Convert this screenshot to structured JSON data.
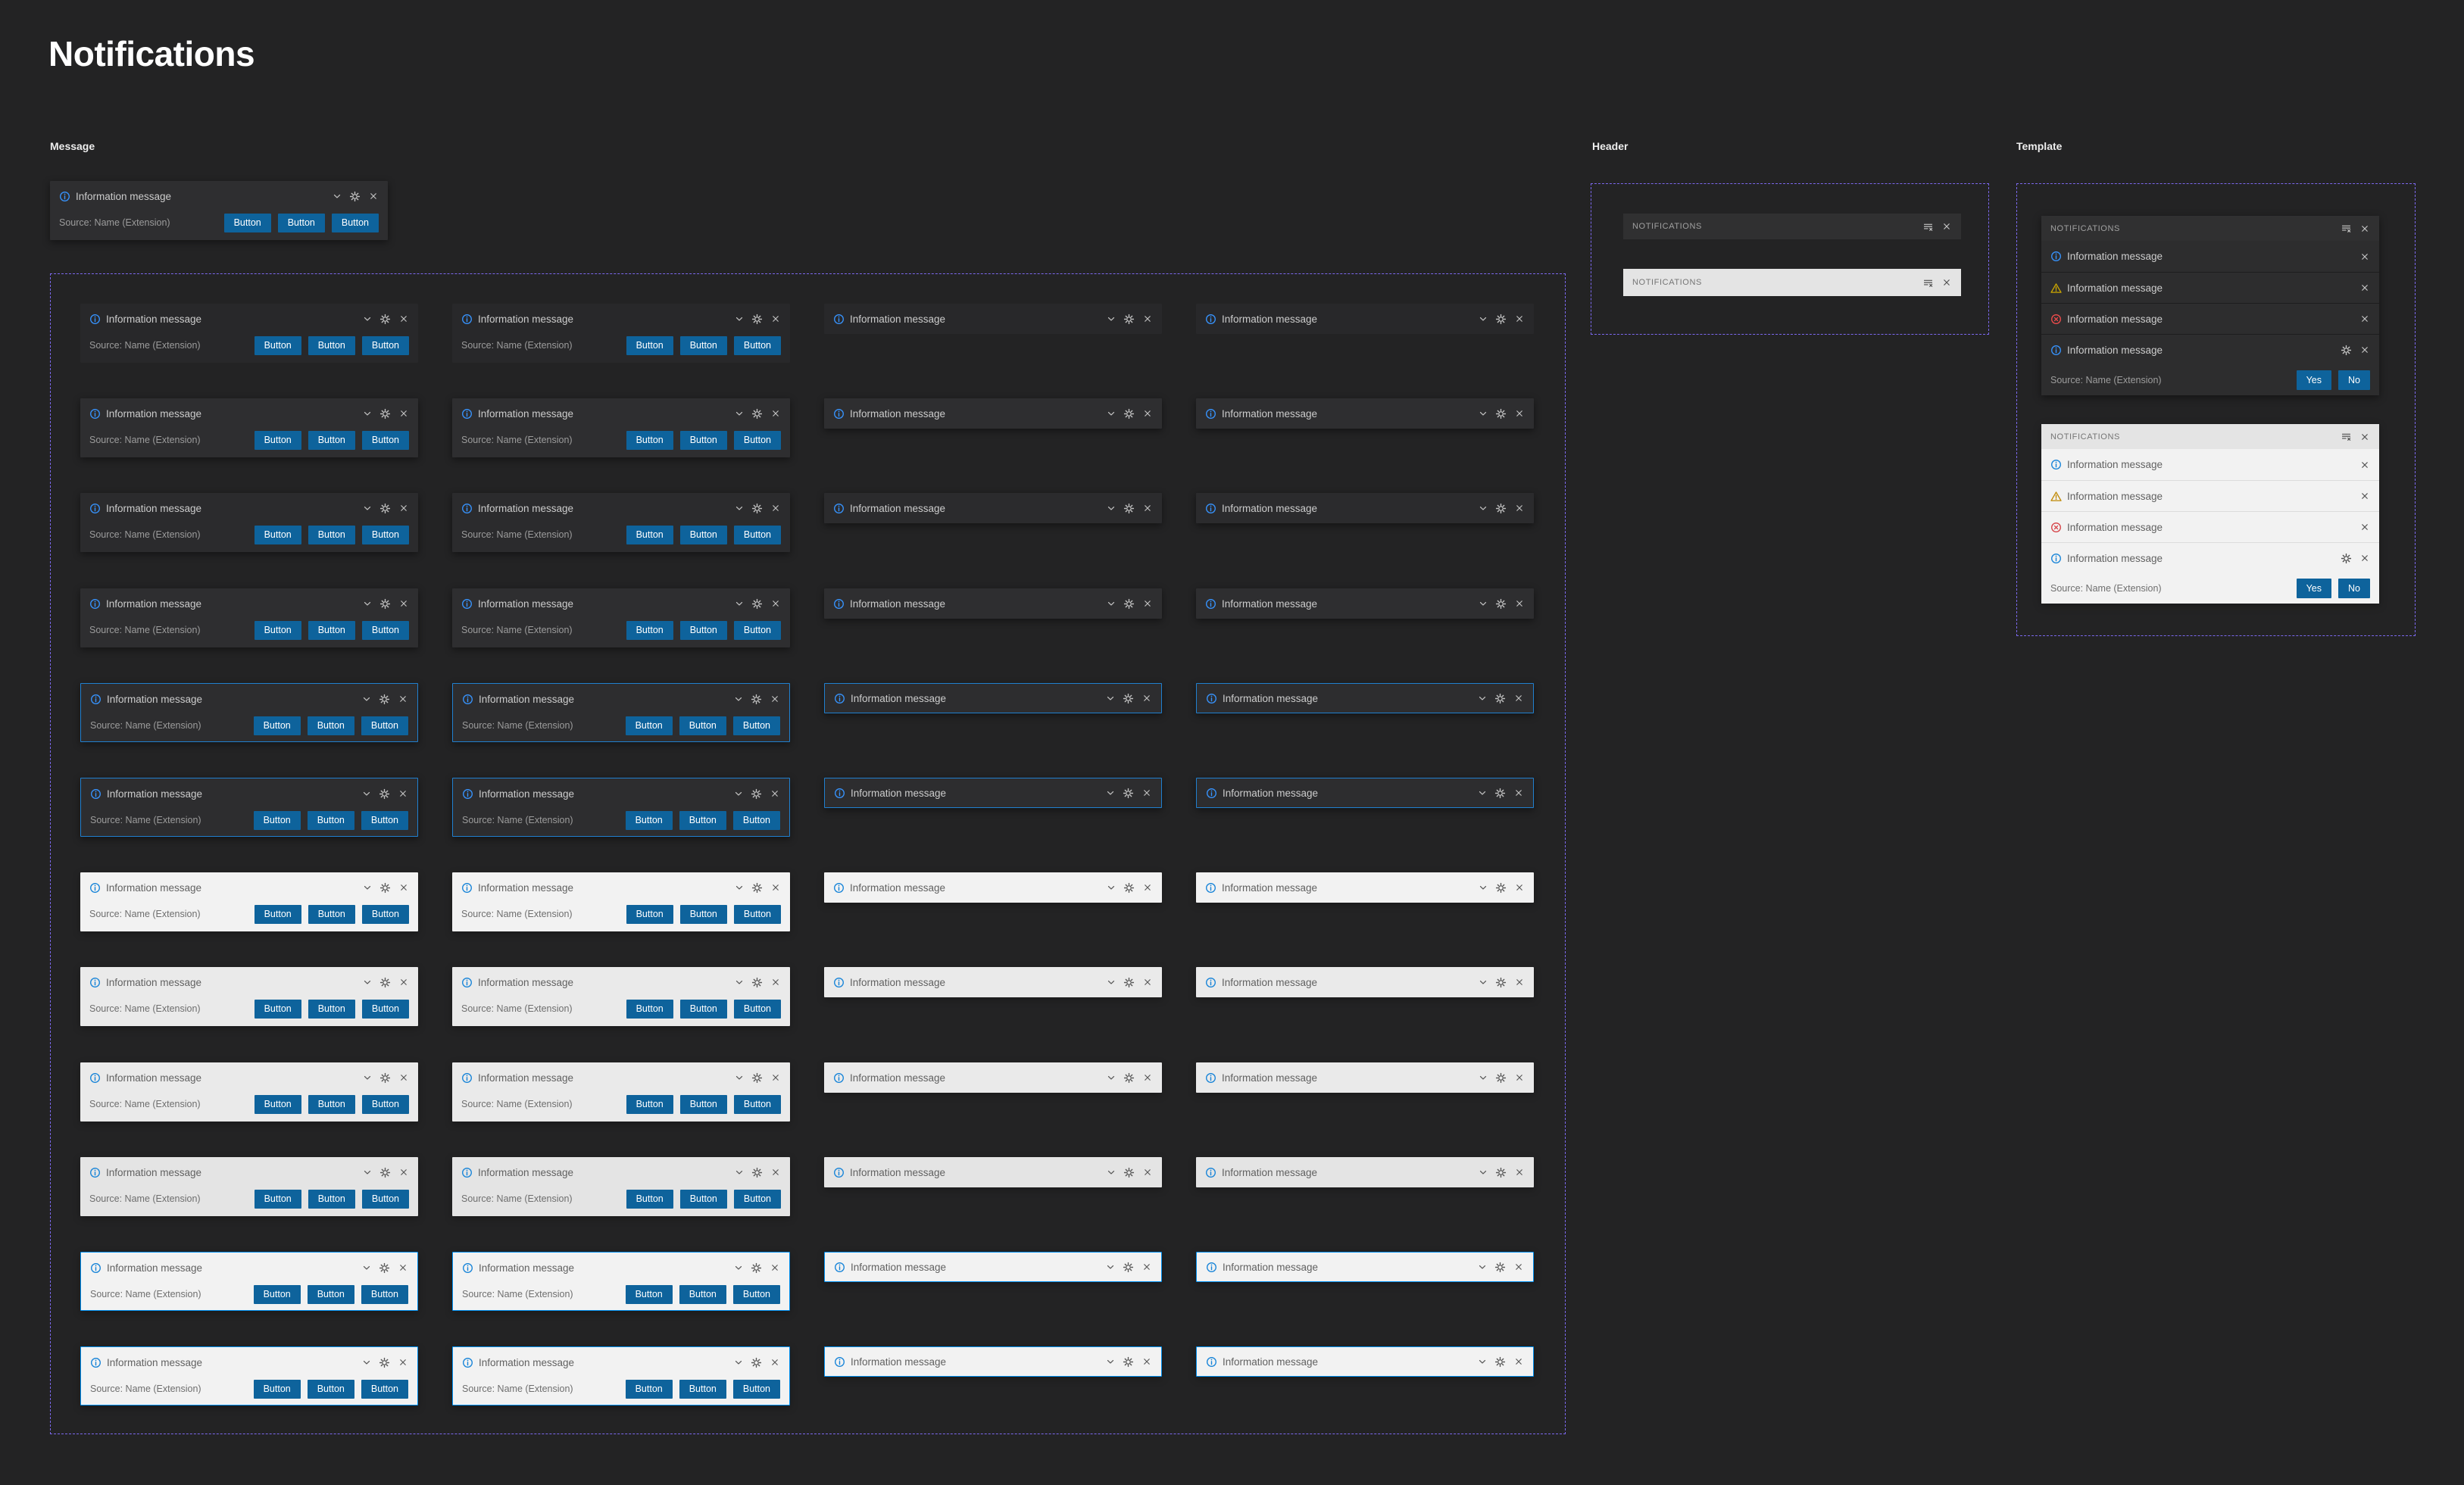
{
  "page": {
    "title": "Notifications"
  },
  "sections": {
    "message_label": "Message",
    "header_label": "Header",
    "template_label": "Template"
  },
  "toast": {
    "message": "Information message",
    "source": "Source: Name (Extension)",
    "buttons": [
      "Button",
      "Button",
      "Button"
    ]
  },
  "colors": {
    "page_bg": "#232324",
    "figma_guide_purple": "#7B68EE",
    "button_blue": "#0E639C",
    "focus_border_dark": "#2080D0",
    "focus_border_light": "#0090F1",
    "info_blue_dark": "#3794FF",
    "info_blue_light": "#1583D8",
    "warning_yellow": "#CCA700",
    "error_red": "#F14C4C"
  },
  "themes": {
    "dark_flat": {
      "light": false,
      "bg": "#28282A",
      "fg": "#CCCCCC",
      "muted": "#9C9C9C",
      "ctl": "#C4C4C4",
      "info": "#3794FF",
      "border": "",
      "shadow": false
    },
    "dark": {
      "light": false,
      "bg": "#2E2E30",
      "fg": "#CCCCCC",
      "muted": "#9C9C9C",
      "ctl": "#C4C4C4",
      "info": "#3794FF",
      "border": "",
      "shadow": true
    },
    "dark_mid": {
      "light": false,
      "bg": "#2B2B2D",
      "fg": "#CCCCCC",
      "muted": "#9C9C9C",
      "ctl": "#C4C4C4",
      "info": "#3794FF",
      "border": "",
      "shadow": true
    },
    "dark_focus": {
      "light": false,
      "bg": "#2D2D2F",
      "fg": "#CCCCCC",
      "muted": "#9C9C9C",
      "ctl": "#C4C4C4",
      "info": "#3794FF",
      "border": "#2080D0",
      "shadow": true
    },
    "light": {
      "light": true,
      "bg": "#F2F2F2",
      "fg": "#616161",
      "muted": "#6E6E6E",
      "ctl": "#565656",
      "info": "#1583D8",
      "border": "",
      "shadow": true
    },
    "light_mid": {
      "light": true,
      "bg": "#EAEAEA",
      "fg": "#616161",
      "muted": "#6E6E6E",
      "ctl": "#565656",
      "info": "#1583D8",
      "border": "",
      "shadow": true
    },
    "light_dim": {
      "light": true,
      "bg": "#E4E4E4",
      "fg": "#616161",
      "muted": "#6E6E6E",
      "ctl": "#565656",
      "info": "#1583D8",
      "border": "",
      "shadow": true
    },
    "light_focus": {
      "light": true,
      "bg": "#F2F2F2",
      "fg": "#616161",
      "muted": "#6E6E6E",
      "ctl": "#565656",
      "info": "#1583D8",
      "border": "#0090F1",
      "shadow": true
    }
  },
  "message_grid": {
    "column_kinds": [
      "expanded",
      "expanded",
      "collapsed",
      "collapsed"
    ],
    "row_themes": [
      "dark_flat",
      "dark",
      "dark_mid",
      "dark",
      "dark_focus",
      "dark_focus",
      "light",
      "light_mid",
      "light_mid",
      "light_dim",
      "light_focus",
      "light_focus"
    ]
  },
  "panel_themes": {
    "dark": {
      "header_bg": "#303031",
      "header_fg": "#A0A0A0",
      "row_bg": "#2D2D2E",
      "fg": "#CCCCCC",
      "muted": "#9D9D9D",
      "ctl": "#C8C8C8",
      "sep": "rgba(0,0,0,0.35)",
      "info": "#3794FF",
      "warning": "#CCA700",
      "error": "#F14C4C",
      "light": false
    },
    "light": {
      "header_bg": "#E4E4E4",
      "header_fg": "#757575",
      "row_bg": "#F2F2F2",
      "fg": "#616161",
      "muted": "#6F6F6F",
      "ctl": "#4D4D4D",
      "sep": "rgba(0,0,0,0.09)",
      "info": "#1583D8",
      "warning": "#BF8803",
      "error": "#D64045",
      "light": true
    }
  },
  "header_bars": [
    {
      "label": "NOTIFICATIONS",
      "theme": "dark"
    },
    {
      "label": "NOTIFICATIONS",
      "theme": "light"
    }
  ],
  "template_panels": [
    {
      "theme": "dark",
      "title": "NOTIFICATIONS",
      "items": [
        {
          "icon": "info",
          "text": "Information message",
          "has_gear": false
        },
        {
          "icon": "warning",
          "text": "Information message",
          "has_gear": false
        },
        {
          "icon": "error",
          "text": "Information message",
          "has_gear": false
        },
        {
          "icon": "info",
          "text": "Information message",
          "has_gear": true
        }
      ],
      "source": "Source: Name (Extension)",
      "yes_label": "Yes",
      "no_label": "No"
    },
    {
      "theme": "light",
      "title": "NOTIFICATIONS",
      "items": [
        {
          "icon": "info",
          "text": "Information message",
          "has_gear": false
        },
        {
          "icon": "warning",
          "text": "Information message",
          "has_gear": false
        },
        {
          "icon": "error",
          "text": "Information message",
          "has_gear": false
        },
        {
          "icon": "info",
          "text": "Information message",
          "has_gear": true
        }
      ],
      "source": "Source: Name (Extension)",
      "yes_label": "Yes",
      "no_label": "No"
    }
  ]
}
